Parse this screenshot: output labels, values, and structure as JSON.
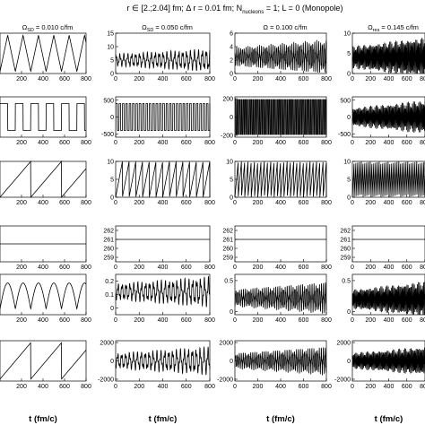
{
  "title": "r ∈ [2.;2.04] fm; Δ r = 0.01 fm; N_nucleons = 1; L = 0 (Monopole)",
  "chart_data": {
    "type": "line",
    "title": "r ∈ [2.;2.04] fm; Δ r = 0.01 fm; N_nucleons = 1; L = 0 (Monopole)",
    "xlabel": "t (fm/c)",
    "xlim": [
      0,
      800
    ],
    "xticks": [
      200,
      400,
      600,
      800
    ],
    "columns": [
      {
        "omega_label": "Ω_SD = 0.010 c/fm",
        "freq": 0.01
      },
      {
        "omega_label": "Ω_SD = 0.050 c/fm",
        "freq": 0.05
      },
      {
        "omega_label": "Ω = 0.100 c/fm",
        "freq": 0.1
      },
      {
        "omega_label": "Ω_res = 0.145 c/fm",
        "freq": 0.145
      }
    ],
    "rows": [
      {
        "panels": [
          {
            "yticks": [],
            "ylim": [
              0,
              10
            ],
            "signal": "triangle",
            "amp": 4.5,
            "offset": 5
          },
          {
            "yticks": [
              0,
              5,
              10,
              15
            ],
            "ylim": [
              0,
              15
            ],
            "signal": "wave",
            "amp": 3,
            "offset": 5
          },
          {
            "yticks": [
              0,
              2,
              4,
              6
            ],
            "ylim": [
              0,
              6
            ],
            "signal": "wave",
            "amp": 1.8,
            "offset": 2.5
          },
          {
            "yticks": [
              0,
              5,
              10
            ],
            "ylim": [
              0,
              10
            ],
            "signal": "wave",
            "amp": 3.5,
            "offset": 4
          }
        ]
      },
      {
        "panels": [
          {
            "yticks": [],
            "ylim": [
              -600,
              600
            ],
            "signal": "square",
            "amp": 400,
            "offset": 0
          },
          {
            "yticks": [
              -500,
              0,
              500
            ],
            "ylim": [
              -600,
              600
            ],
            "signal": "square",
            "amp": 400,
            "offset": 0
          },
          {
            "yticks": [
              -200,
              0,
              200
            ],
            "ylim": [
              -220,
              220
            ],
            "signal": "square",
            "amp": 190,
            "offset": 0
          },
          {
            "yticks": [
              -500,
              0,
              500
            ],
            "ylim": [
              -600,
              600
            ],
            "signal": "wave",
            "amp": 350,
            "offset": 0
          }
        ]
      },
      {
        "panels": [
          {
            "yticks": [],
            "ylim": [
              0,
              10
            ],
            "signal": "saw",
            "amp": 10,
            "offset": 0
          },
          {
            "yticks": [
              0,
              5,
              10
            ],
            "ylim": [
              0,
              10
            ],
            "signal": "saw",
            "amp": 10,
            "offset": 0
          },
          {
            "yticks": [
              0,
              5,
              10
            ],
            "ylim": [
              0,
              10
            ],
            "signal": "saw",
            "amp": 10,
            "offset": 0
          },
          {
            "yticks": [
              0,
              5,
              10
            ],
            "ylim": [
              0,
              10
            ],
            "signal": "saw",
            "amp": 10,
            "offset": 0
          }
        ]
      },
      {
        "panels": [
          {
            "yticks": [],
            "ylim": [
              259.5,
              262.5
            ],
            "signal": "flat",
            "amp": 0,
            "offset": 261
          },
          {
            "yticks": [
              259,
              260,
              261,
              262
            ],
            "ylim": [
              258.5,
              262.5
            ],
            "signal": "flat",
            "amp": 0,
            "offset": 261
          },
          {
            "yticks": [
              259,
              260,
              261,
              262
            ],
            "ylim": [
              258.5,
              262.5
            ],
            "signal": "flat",
            "amp": 0,
            "offset": 261
          },
          {
            "yticks": [
              259,
              260,
              261,
              262
            ],
            "ylim": [
              258.5,
              262.5
            ],
            "signal": "flat",
            "amp": 0,
            "offset": 261
          }
        ]
      },
      {
        "panels": [
          {
            "yticks": [],
            "ylim": [
              -0.1,
              0.6
            ],
            "signal": "absine",
            "amp": 0.45,
            "offset": 0
          },
          {
            "yticks": [
              0,
              0.1,
              0.2
            ],
            "ylim": [
              -0.05,
              0.25
            ],
            "signal": "wave",
            "amp": 0.08,
            "offset": 0.12
          },
          {
            "yticks": [
              0,
              0.5
            ],
            "ylim": [
              -0.05,
              0.6
            ],
            "signal": "wave",
            "amp": 0.18,
            "offset": 0.22
          },
          {
            "yticks": [
              0,
              0.5
            ],
            "ylim": [
              -0.05,
              0.6
            ],
            "signal": "wave",
            "amp": 0.2,
            "offset": 0.2
          }
        ]
      },
      {
        "panels": [
          {
            "yticks": [],
            "ylim": [
              -2000,
              2000
            ],
            "signal": "saw",
            "amp": 3600,
            "offset": -1800
          },
          {
            "yticks": [
              -2000,
              0,
              2000
            ],
            "ylim": [
              -2200,
              2200
            ],
            "signal": "wave",
            "amp": 1100,
            "offset": 0
          },
          {
            "yticks": [
              -2000,
              0,
              2000
            ],
            "ylim": [
              -2200,
              2200
            ],
            "signal": "wave",
            "amp": 1100,
            "offset": 0
          },
          {
            "yticks": [
              -2000,
              0,
              2000
            ],
            "ylim": [
              -2200,
              2200
            ],
            "signal": "wave",
            "amp": 1100,
            "offset": 0
          }
        ]
      }
    ]
  }
}
